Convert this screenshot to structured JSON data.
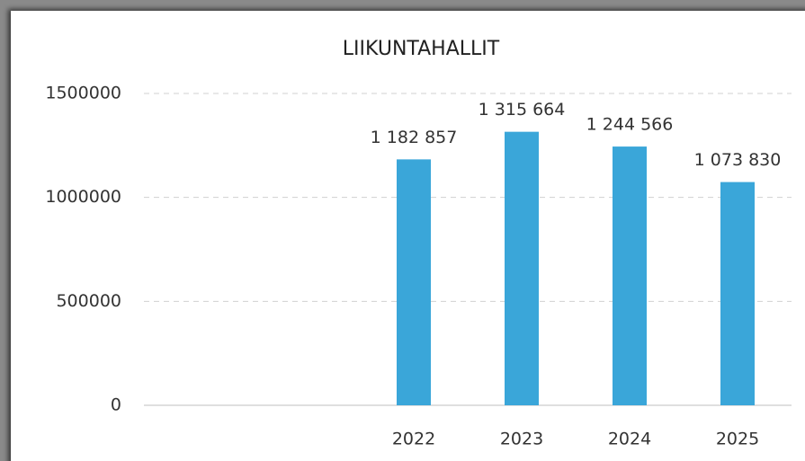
{
  "chart_data": {
    "type": "bar",
    "title": "LIIKUNTAHALLIT",
    "categories": [
      null,
      null,
      "2022",
      "2023",
      "2024",
      "2025"
    ],
    "values": [
      null,
      null,
      1182857,
      1315664,
      1244566,
      1073830
    ],
    "value_labels": [
      null,
      null,
      "1 182 857",
      "1 315 664",
      "1 244 566",
      "1 073 830"
    ],
    "color": "#3aa6d9",
    "ylim": [
      0,
      1500000
    ],
    "yticks": [
      0,
      500000,
      1000000,
      1500000
    ],
    "grid": true
  }
}
